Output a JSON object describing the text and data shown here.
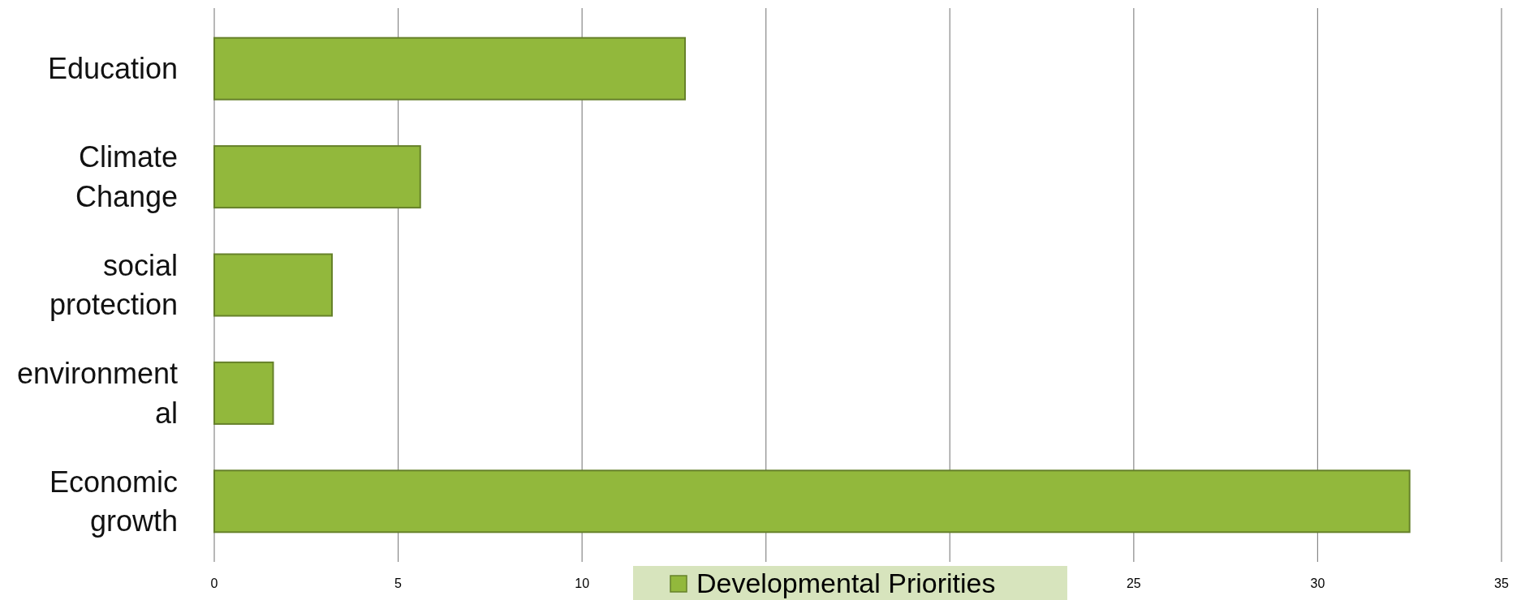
{
  "chart_data": {
    "type": "bar",
    "orientation": "horizontal",
    "categories": [
      "Education",
      "Climate Change",
      "social protection",
      "environmental",
      "Economic growth"
    ],
    "series": [
      {
        "name": "Developmental Priorities",
        "color": "#92b83c",
        "values": [
          12.8,
          5.6,
          3.2,
          1.6,
          32.5
        ]
      }
    ],
    "xlim": [
      0,
      35
    ],
    "xticks": [
      0,
      5,
      10,
      {
        "value": 15,
        "label": null
      },
      {
        "value": 20,
        "label": null
      },
      25,
      30,
      35
    ],
    "grid": "x",
    "legend": "bottom"
  }
}
